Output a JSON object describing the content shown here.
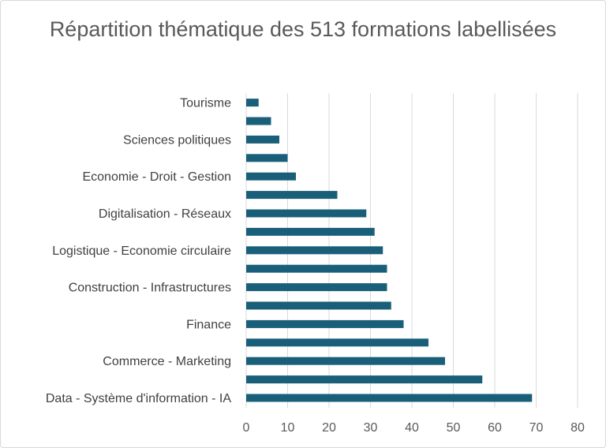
{
  "chart_data": {
    "type": "bar",
    "orientation": "horizontal",
    "title": "Répartition thématique des 513 formations labellisées",
    "xlabel": "",
    "ylabel": "",
    "categories": [
      "Data - Système d'information - IA",
      "",
      "Commerce - Marketing",
      "",
      "Finance",
      "",
      "Construction - Infrastructures",
      "",
      "Logistique - Economie circulaire",
      "",
      "Digitalisation - Réseaux",
      "",
      "Economie - Droit - Gestion",
      "",
      "Sciences politiques",
      "",
      "Tourisme"
    ],
    "values": [
      69,
      57,
      48,
      44,
      38,
      35,
      34,
      34,
      33,
      31,
      29,
      22,
      12,
      10,
      8,
      6,
      3
    ],
    "xlim": [
      0,
      80
    ],
    "xticks": [
      "0",
      "10",
      "20",
      "30",
      "40",
      "50",
      "60",
      "70",
      "80"
    ],
    "grid": "vertical",
    "legend": "none",
    "bar_color": "#1a5f7a",
    "grid_color": "#d9d9d9"
  }
}
